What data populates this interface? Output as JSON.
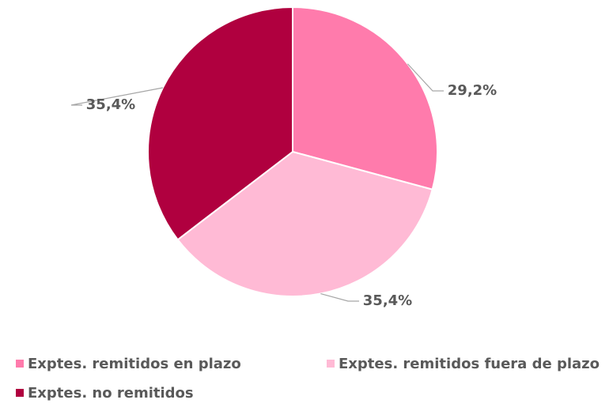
{
  "chart_data": {
    "type": "pie",
    "categories": [
      "Exptes. remitidos en plazo",
      "Exptes. remitidos fuera de plazo",
      "Exptes. no remitidos"
    ],
    "values": [
      29.2,
      35.4,
      35.4
    ],
    "value_labels": [
      "29,2%",
      "35,4%",
      "35,4%"
    ],
    "colors": [
      "#ff7bac",
      "#ffbad5",
      "#b0003f"
    ],
    "legend": "bottom"
  }
}
